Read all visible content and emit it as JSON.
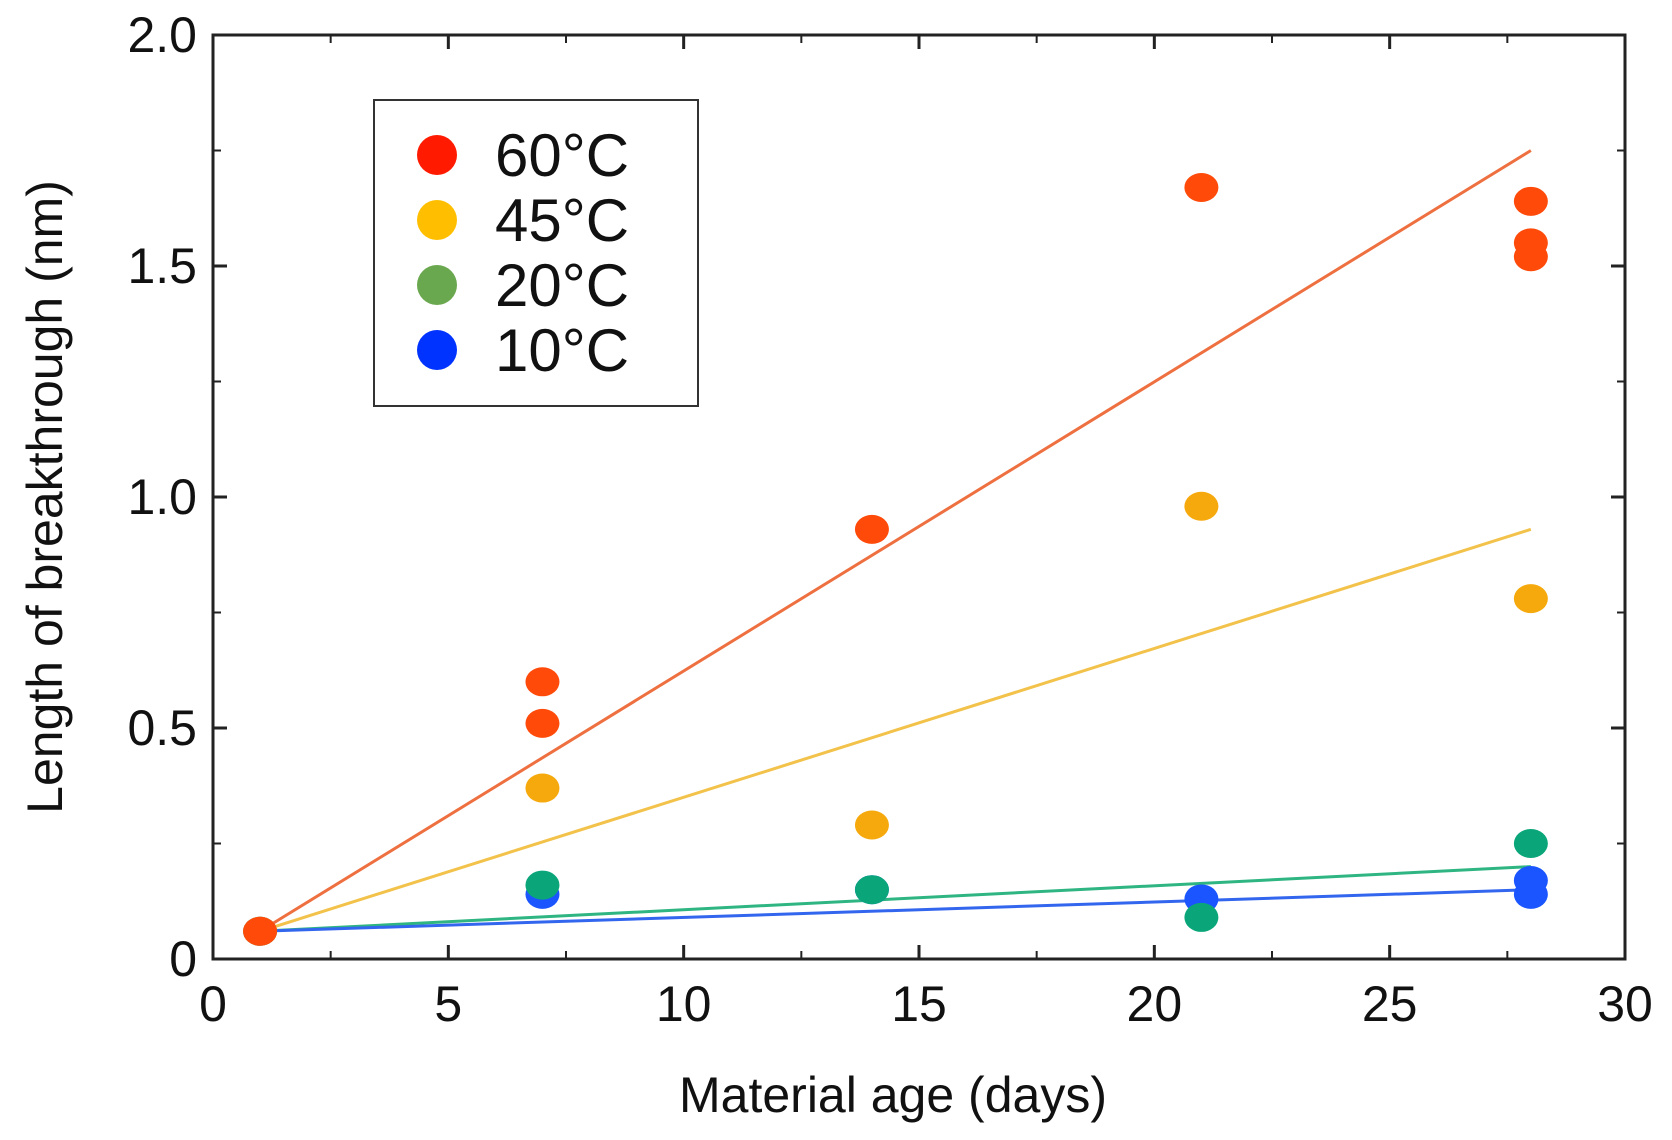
{
  "chart_data": {
    "type": "scatter",
    "title": "",
    "xlabel": "Material age (days)",
    "ylabel": "Length of breakthrough (nm)",
    "xlim": [
      0,
      30
    ],
    "ylim": [
      0,
      2.0
    ],
    "x_ticks": [
      0,
      5,
      10,
      15,
      20,
      25,
      30
    ],
    "x_tick_labels": [
      "0",
      "5",
      "10",
      "15",
      "20",
      "25",
      "30"
    ],
    "y_ticks": [
      0,
      0.5,
      1.0,
      1.5,
      2.0
    ],
    "y_tick_labels": [
      "0",
      "0.5",
      "1.0",
      "1.5",
      "2.0"
    ],
    "grid": false,
    "legend_position": "top-left",
    "series": [
      {
        "name": "60°C",
        "legend_color": "#ff1a00",
        "point_color": "#ff4a0a",
        "line_color": "#ee7040",
        "points": [
          [
            1,
            0.06
          ],
          [
            7,
            0.6
          ],
          [
            7,
            0.51
          ],
          [
            14,
            0.93
          ],
          [
            21,
            1.67
          ],
          [
            28,
            1.64
          ],
          [
            28,
            1.55
          ],
          [
            28,
            1.52
          ]
        ],
        "fit": [
          [
            1,
            0.06
          ],
          [
            28,
            1.75
          ]
        ]
      },
      {
        "name": "45°C",
        "legend_color": "#ffbf00",
        "point_color": "#f5a90c",
        "line_color": "#f2c24a",
        "points": [
          [
            1,
            0.06
          ],
          [
            7,
            0.37
          ],
          [
            14,
            0.29
          ],
          [
            21,
            0.98
          ],
          [
            28,
            0.78
          ]
        ],
        "fit": [
          [
            1,
            0.06
          ],
          [
            28,
            0.93
          ]
        ]
      },
      {
        "name": "20°C",
        "legend_color": "#6aa84f",
        "point_color": "#0aa67a",
        "line_color": "#2eb582",
        "points": [
          [
            1,
            0.06
          ],
          [
            7,
            0.16
          ],
          [
            14,
            0.15
          ],
          [
            21,
            0.09
          ],
          [
            28,
            0.25
          ]
        ],
        "fit": [
          [
            1,
            0.06
          ],
          [
            28,
            0.2
          ]
        ]
      },
      {
        "name": "10°C",
        "legend_color": "#0033ff",
        "point_color": "#1a55ff",
        "line_color": "#3366ee",
        "points": [
          [
            1,
            0.06
          ],
          [
            7,
            0.14
          ],
          [
            14,
            0.15
          ],
          [
            21,
            0.13
          ],
          [
            28,
            0.17
          ],
          [
            28,
            0.14
          ]
        ],
        "fit": [
          [
            1,
            0.06
          ],
          [
            28,
            0.15
          ]
        ]
      }
    ]
  }
}
